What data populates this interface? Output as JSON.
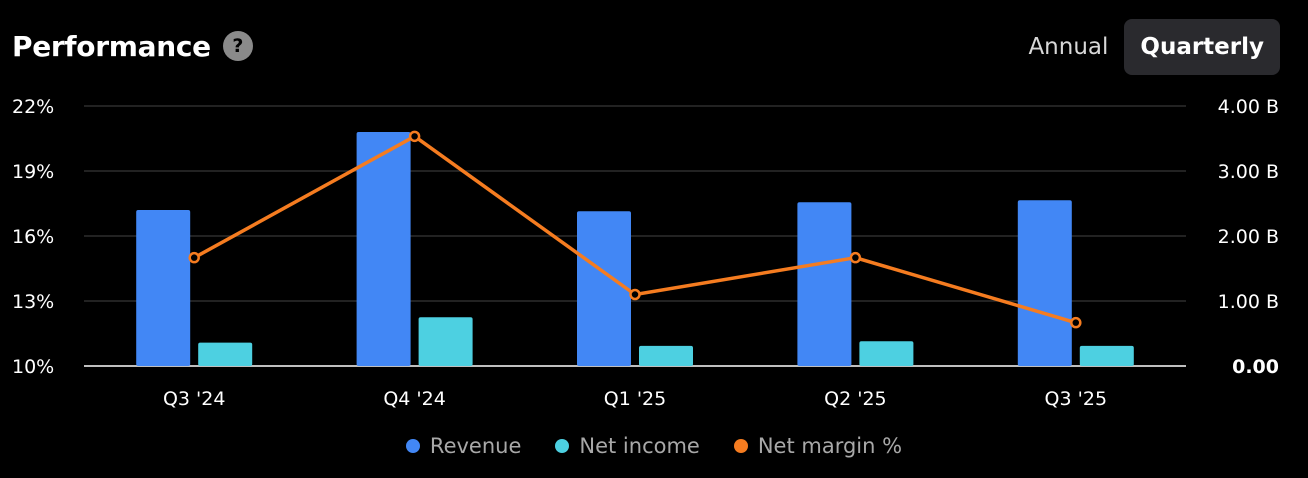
{
  "header": {
    "title": "Performance",
    "help_icon": "?"
  },
  "period_toggle": {
    "options": [
      "Annual",
      "Quarterly"
    ],
    "selected": "Quarterly"
  },
  "colors": {
    "revenue": "#4287f5",
    "net_income": "#4dd0e1",
    "net_margin": "#f57c20",
    "grid": "#2e2e2e",
    "axis": "#bfbfbf"
  },
  "chart_data": {
    "type": "bar",
    "categories": [
      "Q3 '24",
      "Q4 '24",
      "Q1 '25",
      "Q2 '25",
      "Q3 '25"
    ],
    "series": [
      {
        "name": "Revenue",
        "type": "bar",
        "axis": "right",
        "values": [
          2.4,
          3.6,
          2.38,
          2.52,
          2.55
        ]
      },
      {
        "name": "Net income",
        "type": "bar",
        "axis": "right",
        "values": [
          0.36,
          0.75,
          0.31,
          0.38,
          0.31
        ]
      },
      {
        "name": "Net margin %",
        "type": "line",
        "axis": "left",
        "values": [
          15.0,
          20.6,
          13.3,
          15.0,
          12.0
        ]
      }
    ],
    "y_left": {
      "ticks": [
        "22%",
        "19%",
        "16%",
        "13%",
        "10%"
      ],
      "range": [
        10,
        22
      ]
    },
    "y_right": {
      "ticks": [
        "4.00 B",
        "3.00 B",
        "2.00 B",
        "1.00 B",
        "0.00"
      ],
      "range": [
        0,
        4
      ]
    },
    "legend": [
      "Revenue",
      "Net income",
      "Net margin %"
    ],
    "legend_position": "bottom",
    "grid": true
  }
}
